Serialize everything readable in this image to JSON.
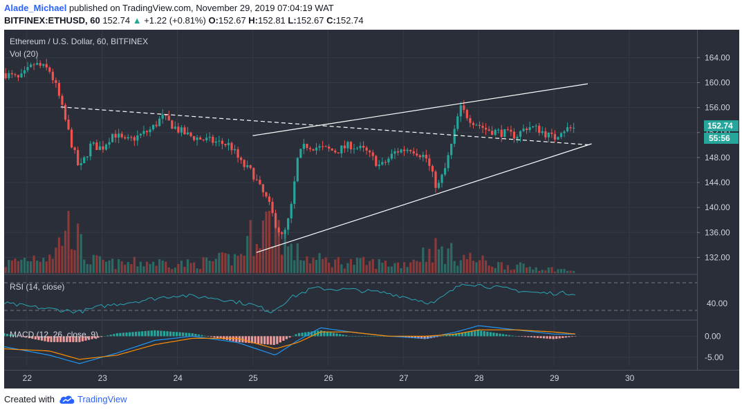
{
  "header": {
    "author": "Alade_Michael",
    "published_text": "published on TradingView.com, November 29, 2019 07:04:19 WAT",
    "symbol": "BITFINEX:ETHUSD, 60",
    "last": "152.74",
    "change": "+1.22 (+0.81%)",
    "o_label": "O:",
    "o_value": "152.67",
    "h_label": "H:",
    "h_value": "152.81",
    "l_label": "L:",
    "l_value": "152.67",
    "c_label": "C:",
    "c_value": "152.74"
  },
  "chart": {
    "legend_title": "Ethereum / U.S. Dollar, 60, BITFINEX",
    "vol_label": "Vol (20)",
    "rsi_label": "RSI (14, close)",
    "macd_label": "MACD (12, 26, close, 9)",
    "last_price_label": "152.74",
    "countdown_label": "55:56",
    "colors": {
      "background": "#2a2e39",
      "up": "#26a69a",
      "down": "#ef5350",
      "vol_up": "#2d6a63",
      "vol_down": "#8b3a3a",
      "rsi": "#2aa5b5",
      "macd": "#2196f3",
      "signal": "#ff8f00",
      "trend": "#ffffff",
      "axis_text": "#d1d4dc",
      "grid": "#363a45"
    }
  },
  "chart_data": {
    "type": "candlestick",
    "title": "Ethereum / U.S. Dollar, 60, BITFINEX",
    "x_tick_labels": [
      "22",
      "23",
      "24",
      "25",
      "26",
      "27",
      "28",
      "29",
      "30"
    ],
    "x_range_days": [
      21.7,
      30.9
    ],
    "price_axis": {
      "ticks": [
        "164.00",
        "160.00",
        "156.00",
        "152.00",
        "148.00",
        "144.00",
        "140.00",
        "136.00",
        "132.00"
      ],
      "range": [
        129.5,
        167.8
      ]
    },
    "rsi_axis": {
      "ticks": [
        "40.00"
      ],
      "levels": [
        70,
        30
      ],
      "range": [
        18,
        80
      ]
    },
    "macd_axis": {
      "ticks": [
        "0.00",
        "-5.00"
      ],
      "range": [
        -7,
        3.5
      ]
    },
    "price_path": [
      [
        21.7,
        161.5
      ],
      [
        21.9,
        160.5
      ],
      [
        22.1,
        163.0
      ],
      [
        22.3,
        162.0
      ],
      [
        22.4,
        159.0
      ],
      [
        22.5,
        154.5
      ],
      [
        22.6,
        150.0
      ],
      [
        22.7,
        146.0
      ],
      [
        22.85,
        150.0
      ],
      [
        23.0,
        149.5
      ],
      [
        23.15,
        152.0
      ],
      [
        23.3,
        150.5
      ],
      [
        23.5,
        151.5
      ],
      [
        23.65,
        152.5
      ],
      [
        23.8,
        154.5
      ],
      [
        24.0,
        152.5
      ],
      [
        24.15,
        151.5
      ],
      [
        24.3,
        151.0
      ],
      [
        24.5,
        150.5
      ],
      [
        24.7,
        150.0
      ],
      [
        24.85,
        147.0
      ],
      [
        25.0,
        145.5
      ],
      [
        25.1,
        143.0
      ],
      [
        25.2,
        141.0
      ],
      [
        25.3,
        137.5
      ],
      [
        25.4,
        135.0
      ],
      [
        25.5,
        139.0
      ],
      [
        25.6,
        148.0
      ],
      [
        25.7,
        150.0
      ],
      [
        25.9,
        149.5
      ],
      [
        26.1,
        149.0
      ],
      [
        26.3,
        150.0
      ],
      [
        26.5,
        149.0
      ],
      [
        26.7,
        146.5
      ],
      [
        26.9,
        149.0
      ],
      [
        27.1,
        149.5
      ],
      [
        27.3,
        148.0
      ],
      [
        27.45,
        143.0
      ],
      [
        27.55,
        146.0
      ],
      [
        27.65,
        150.5
      ],
      [
        27.75,
        156.0
      ],
      [
        27.9,
        154.0
      ],
      [
        28.1,
        152.5
      ],
      [
        28.3,
        152.0
      ],
      [
        28.5,
        151.5
      ],
      [
        28.65,
        153.0
      ],
      [
        28.8,
        152.5
      ],
      [
        29.0,
        151.0
      ],
      [
        29.1,
        152.5
      ],
      [
        29.3,
        152.74
      ]
    ],
    "volume_path": [
      [
        21.7,
        4
      ],
      [
        22.4,
        10
      ],
      [
        22.55,
        26
      ],
      [
        22.65,
        17
      ],
      [
        22.8,
        6
      ],
      [
        23.2,
        4
      ],
      [
        23.6,
        5
      ],
      [
        24.2,
        4
      ],
      [
        24.8,
        7
      ],
      [
        25.05,
        20
      ],
      [
        25.3,
        24
      ],
      [
        25.5,
        10
      ],
      [
        25.8,
        6
      ],
      [
        26.2,
        5
      ],
      [
        27.0,
        4
      ],
      [
        27.4,
        11
      ],
      [
        27.7,
        8
      ],
      [
        28.2,
        4
      ],
      [
        29.3,
        1
      ]
    ],
    "rsi_path": [
      [
        21.7,
        40
      ],
      [
        22.3,
        32
      ],
      [
        22.7,
        28
      ],
      [
        23.0,
        36
      ],
      [
        23.5,
        44
      ],
      [
        24.0,
        52
      ],
      [
        24.5,
        48
      ],
      [
        25.0,
        38
      ],
      [
        25.25,
        28
      ],
      [
        25.5,
        48
      ],
      [
        25.8,
        62
      ],
      [
        26.3,
        60
      ],
      [
        26.8,
        55
      ],
      [
        27.4,
        40
      ],
      [
        27.8,
        70
      ],
      [
        28.3,
        62
      ],
      [
        28.8,
        55
      ],
      [
        29.3,
        55
      ]
    ],
    "macd": {
      "macd_path": [
        [
          21.7,
          -2.5
        ],
        [
          22.3,
          -4.5
        ],
        [
          22.7,
          -6.5
        ],
        [
          23.2,
          -4.0
        ],
        [
          23.7,
          -1.0
        ],
        [
          24.2,
          0.0
        ],
        [
          24.8,
          -1.5
        ],
        [
          25.3,
          -4.5
        ],
        [
          25.6,
          -1.0
        ],
        [
          25.9,
          2.0
        ],
        [
          26.3,
          1.0
        ],
        [
          26.8,
          0.0
        ],
        [
          27.3,
          -0.5
        ],
        [
          27.7,
          1.0
        ],
        [
          28.0,
          2.5
        ],
        [
          28.5,
          1.5
        ],
        [
          29.0,
          0.5
        ],
        [
          29.3,
          0.5
        ]
      ],
      "signal_path": [
        [
          21.7,
          -3.0
        ],
        [
          22.3,
          -3.5
        ],
        [
          22.7,
          -5.5
        ],
        [
          23.2,
          -4.5
        ],
        [
          23.7,
          -2.0
        ],
        [
          24.2,
          -0.5
        ],
        [
          24.8,
          -0.5
        ],
        [
          25.3,
          -3.0
        ],
        [
          25.6,
          -1.5
        ],
        [
          25.9,
          1.0
        ],
        [
          26.3,
          1.0
        ],
        [
          26.8,
          0.0
        ],
        [
          27.3,
          0.0
        ],
        [
          27.7,
          0.5
        ],
        [
          28.0,
          1.5
        ],
        [
          28.5,
          1.5
        ],
        [
          29.0,
          1.0
        ],
        [
          29.3,
          0.5
        ]
      ]
    },
    "trendlines": [
      {
        "style": "dashed",
        "points": [
          [
            22.45,
            156.1
          ],
          [
            29.5,
            150.0
          ]
        ]
      },
      {
        "style": "solid",
        "points": [
          [
            25.0,
            151.5
          ],
          [
            29.45,
            159.8
          ]
        ]
      },
      {
        "style": "solid",
        "points": [
          [
            25.05,
            132.8
          ],
          [
            29.5,
            150.2
          ]
        ]
      }
    ],
    "grid": true,
    "legend": "top-left"
  }
}
